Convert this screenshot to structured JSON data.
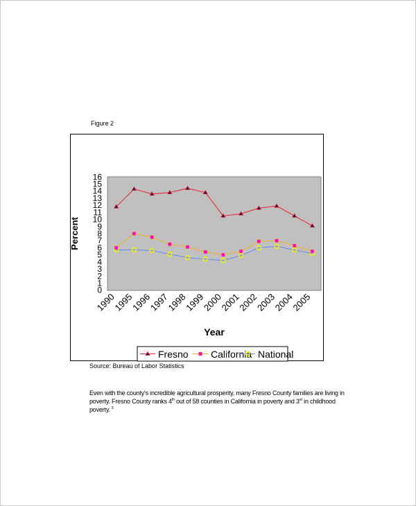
{
  "figure_label": "Figure 2",
  "source": "Source: Bureau of Labor Statistics",
  "paragraph": {
    "text1": "Even with the county's incredible agricultural prosperity, many Fresno County families are living in poverty.  Fresno County ranks 4",
    "sup1": "th",
    "text2": " out of 58 counties in California in poverty and 3",
    "sup2": "rd",
    "text3": " in childhood poverty.",
    "footnote": "5"
  },
  "chart_data": {
    "type": "line",
    "xlabel": "Year",
    "ylabel": "Percent",
    "categories": [
      "1990",
      "1995",
      "1996",
      "1997",
      "1998",
      "1999",
      "2000",
      "2001",
      "2002",
      "2003",
      "2004",
      "2005"
    ],
    "ylim": [
      0,
      16
    ],
    "yticks": [
      0,
      1,
      2,
      3,
      4,
      5,
      6,
      7,
      8,
      9,
      10,
      11,
      12,
      13,
      14,
      15,
      16
    ],
    "grid": false,
    "plot_background": "#c0c0c0",
    "legend": "bottom",
    "series": [
      {
        "name": "Fresno",
        "color": "#e8202a",
        "marker": "triangle",
        "values": [
          11.8,
          14.3,
          13.6,
          13.8,
          14.4,
          13.8,
          10.5,
          10.8,
          11.6,
          11.9,
          10.5,
          9.1
        ]
      },
      {
        "name": "California",
        "color": "#f0b020",
        "marker": "square",
        "values": [
          6.0,
          8.0,
          7.5,
          6.5,
          6.1,
          5.4,
          5.0,
          5.5,
          6.9,
          7.0,
          6.3,
          5.5
        ]
      },
      {
        "name": "National",
        "color": "#6688ee",
        "marker": "circle",
        "values": [
          5.7,
          5.7,
          5.6,
          5.1,
          4.6,
          4.4,
          4.2,
          4.9,
          6.0,
          6.2,
          5.7,
          5.2
        ]
      }
    ]
  }
}
